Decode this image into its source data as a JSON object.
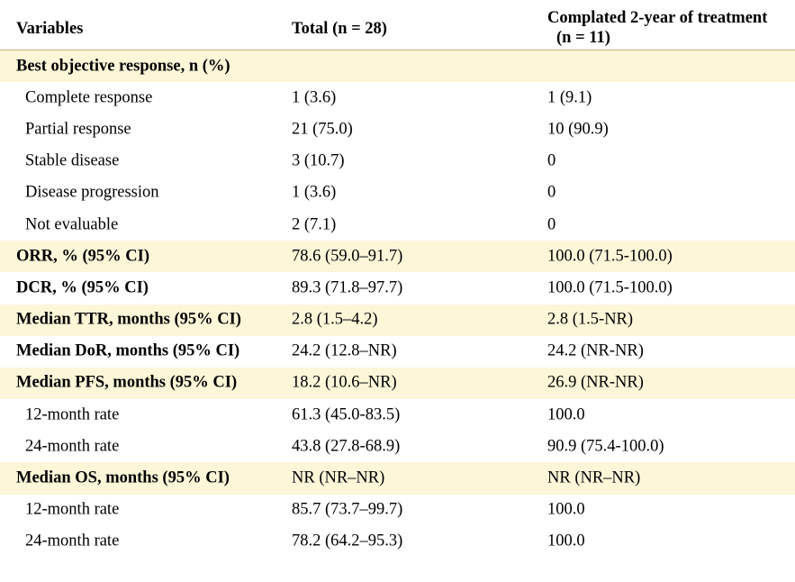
{
  "table": {
    "headers": {
      "variables": "Variables",
      "total": "Total (n = 28)",
      "completed_line1": "Complated 2-year of treatment",
      "completed_line2": "(n = 11)"
    },
    "rows": [
      {
        "label": "Best objective response, n (%)",
        "total": "",
        "completed": ""
      },
      {
        "label": "Complete response",
        "total": "1 (3.6)",
        "completed": "1 (9.1)"
      },
      {
        "label": "Partial response",
        "total": "21 (75.0)",
        "completed": "10 (90.9)"
      },
      {
        "label": "Stable disease",
        "total": "3 (10.7)",
        "completed": "0"
      },
      {
        "label": "Disease progression",
        "total": "1 (3.6)",
        "completed": "0"
      },
      {
        "label": "Not evaluable",
        "total": "2 (7.1)",
        "completed": "0"
      },
      {
        "label": "ORR, % (95% CI)",
        "total": "78.6 (59.0–91.7)",
        "completed": "100.0 (71.5-100.0)"
      },
      {
        "label": "DCR, % (95% CI)",
        "total": "89.3 (71.8–97.7)",
        "completed": "100.0 (71.5-100.0)"
      },
      {
        "label": "Median TTR, months (95% CI)",
        "total": "2.8 (1.5–4.2)",
        "completed": "2.8 (1.5-NR)"
      },
      {
        "label": "Median DoR, months (95% CI)",
        "total": "24.2 (12.8–NR)",
        "completed": "24.2 (NR-NR)"
      },
      {
        "label": "Median PFS, months (95% CI)",
        "total": "18.2 (10.6–NR)",
        "completed": "26.9 (NR-NR)"
      },
      {
        "label": "12-month rate",
        "total": "61.3 (45.0-83.5)",
        "completed": "100.0"
      },
      {
        "label": "24-month rate",
        "total": "43.8 (27.8-68.9)",
        "completed": "90.9 (75.4-100.0)"
      },
      {
        "label": "Median OS, months (95% CI)",
        "total": "NR (NR–NR)",
        "completed": "NR (NR–NR)"
      },
      {
        "label": "12-month rate",
        "total": "85.7 (73.7–99.7)",
        "completed": "100.0"
      },
      {
        "label": "24-month rate",
        "total": "78.2 (64.2–95.3)",
        "completed": "100.0"
      }
    ]
  },
  "colors": {
    "shade": "#fdf6d9",
    "rule": "#c7b27a",
    "text": "#000000"
  }
}
